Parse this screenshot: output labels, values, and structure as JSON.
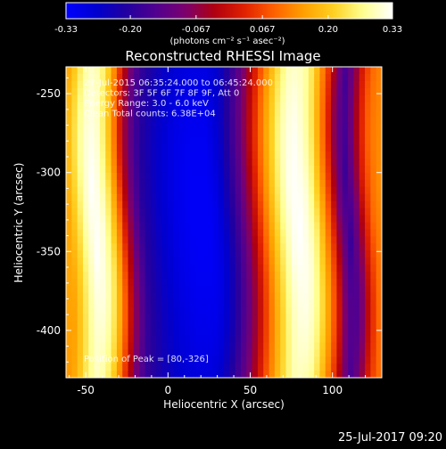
{
  "chart_data": {
    "type": "heatmap",
    "title": "Reconstructed RHESSI Image",
    "xlabel": "Heliocentric X (arcsec)",
    "ylabel": "Heliocentric Y (arcsec)",
    "xlim": [
      -62,
      130
    ],
    "ylim": [
      -430,
      -233
    ],
    "x_ticks": [
      -50,
      0,
      50,
      100
    ],
    "y_ticks": [
      -250,
      -300,
      -350,
      -400
    ],
    "annotations": [
      "27-Jul-2015 06:35:24.000 to 06:45:24.000",
      "Detectors: 3F 5F 6F 7F 8F 9F, Att 0",
      "Energy Range: 3.0 - 6.0 keV",
      "Clean     Total counts: 6.38E+04"
    ],
    "peak_label": "Position of Peak = [80,-326]",
    "peak": {
      "x": 80,
      "y": -326
    },
    "colorbar": {
      "range": [
        -0.33,
        0.33
      ],
      "tick_values": [
        -0.33,
        -0.2,
        -0.067,
        0.067,
        0.2,
        0.33
      ],
      "tick_labels": [
        "-0.33",
        "-0.20",
        "-0.067",
        "0.067",
        "0.20",
        "0.33"
      ],
      "units_label": "(photons cm⁻² s⁻¹ asec⁻²)"
    },
    "columns": {
      "x": [
        -60,
        -55,
        -50,
        -45,
        -40,
        -35,
        -30,
        -25,
        -20,
        -15,
        -10,
        -5,
        0,
        5,
        10,
        15,
        20,
        25,
        30,
        35,
        40,
        45,
        50,
        55,
        60,
        65,
        70,
        75,
        80,
        85,
        90,
        95,
        100,
        105,
        110,
        115,
        120,
        125,
        130
      ],
      "value": [
        0.16,
        0.22,
        0.29,
        0.33,
        0.31,
        0.24,
        0.12,
        -0.02,
        -0.13,
        -0.2,
        -0.23,
        -0.26,
        -0.28,
        -0.3,
        -0.31,
        -0.32,
        -0.32,
        -0.32,
        -0.3,
        -0.26,
        -0.2,
        -0.14,
        -0.06,
        0.03,
        0.12,
        0.2,
        0.27,
        0.32,
        0.33,
        0.31,
        0.25,
        0.15,
        0.04,
        -0.1,
        -0.18,
        -0.1,
        0.02,
        0.1,
        0.13
      ]
    }
  },
  "timestamp": "25-Jul-2017 09:20",
  "colors": {
    "background": "#000000",
    "text": "#ffffff",
    "colormap": [
      "#0000ff",
      "#0000d0",
      "#2000a0",
      "#500090",
      "#7a0070",
      "#b00010",
      "#e02000",
      "#ff6000",
      "#ffa000",
      "#ffd020",
      "#ffff90",
      "#ffffff"
    ]
  }
}
